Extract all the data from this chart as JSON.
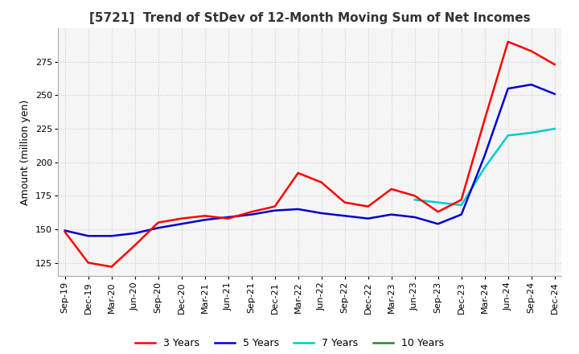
{
  "title": "[5721]  Trend of StDev of 12-Month Moving Sum of Net Incomes",
  "ylabel": "Amount (million yen)",
  "ylim": [
    115,
    300
  ],
  "yticks": [
    125,
    150,
    175,
    200,
    225,
    250,
    275
  ],
  "legend_labels": [
    "3 Years",
    "5 Years",
    "7 Years",
    "10 Years"
  ],
  "legend_colors": [
    "#ff0000",
    "#0000cd",
    "#00cccc",
    "#228b22"
  ],
  "background_color": "#ffffff",
  "plot_bg_color": "#f5f5f5",
  "grid_color": "#cccccc",
  "x_labels": [
    "Sep-19",
    "Dec-19",
    "Mar-20",
    "Jun-20",
    "Sep-20",
    "Dec-20",
    "Mar-21",
    "Jun-21",
    "Sep-21",
    "Dec-21",
    "Mar-22",
    "Jun-22",
    "Sep-22",
    "Dec-22",
    "Mar-23",
    "Jun-23",
    "Sep-23",
    "Dec-23",
    "Mar-24",
    "Jun-24",
    "Sep-24",
    "Dec-24"
  ],
  "series_3y": [
    148,
    125,
    122,
    138,
    155,
    158,
    160,
    158,
    163,
    167,
    192,
    185,
    170,
    167,
    180,
    175,
    163,
    172,
    232,
    290,
    283,
    273
  ],
  "series_5y": [
    149,
    145,
    145,
    147,
    151,
    154,
    157,
    159,
    161,
    164,
    165,
    162,
    160,
    158,
    161,
    159,
    154,
    161,
    205,
    255,
    258,
    251
  ],
  "series_7y": [
    null,
    null,
    null,
    null,
    null,
    null,
    null,
    null,
    null,
    null,
    null,
    null,
    null,
    null,
    null,
    172,
    170,
    168,
    196,
    220,
    222,
    225
  ],
  "series_10y": [
    null,
    null,
    null,
    null,
    null,
    null,
    null,
    null,
    null,
    null,
    null,
    null,
    null,
    null,
    null,
    null,
    null,
    null,
    null,
    null,
    null,
    null
  ],
  "title_fontsize": 11,
  "axis_label_fontsize": 9,
  "tick_fontsize": 8,
  "legend_fontsize": 9,
  "linewidth": 1.8
}
